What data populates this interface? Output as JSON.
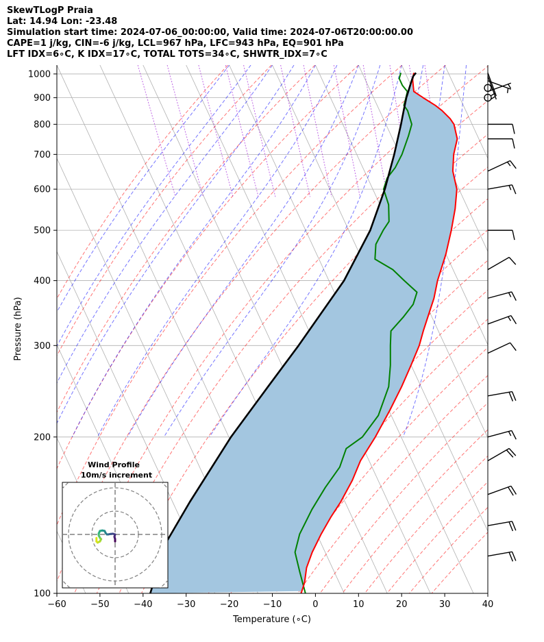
{
  "title_lines": [
    "SkewTLogP Praia",
    "Lat: 14.94   Lon: -23.48",
    "Simulation start time: 2024-07-06_00:00:00, Valid time: 2024-07-06T20:00:00.00",
    "CAPE=1 j/kg, CIN=-6 j/kg, LCL=967 hPa, LFC=943 hPa, EQ=901 hPa",
    "LFT IDX=6∘C, K IDX=17∘C, TOTAL TOTS=34∘C, SHWTR_IDX=7∘C"
  ],
  "chart_data": {
    "type": "skewt",
    "xlabel": "Temperature (∘C)",
    "ylabel": "Pressure (hPa)",
    "xlim": [
      -60,
      40
    ],
    "ylim": [
      1040,
      100
    ],
    "y_scale": "log",
    "x_ticks": [
      -60,
      -50,
      -40,
      -30,
      -20,
      -10,
      0,
      10,
      20,
      30,
      40
    ],
    "y_ticks": [
      1000,
      900,
      800,
      700,
      600,
      500,
      400,
      300,
      200,
      100
    ],
    "grid": true,
    "temperature": {
      "color": "#ff0000",
      "points": [
        [
          1005,
          22
        ],
        [
          975,
          21
        ],
        [
          950,
          20.5
        ],
        [
          925,
          20
        ],
        [
          900,
          21.5
        ],
        [
          870,
          23.5
        ],
        [
          850,
          24.5
        ],
        [
          820,
          25.5
        ],
        [
          800,
          25.8
        ],
        [
          750,
          25
        ],
        [
          700,
          22.5
        ],
        [
          650,
          20.5
        ],
        [
          600,
          19.5
        ],
        [
          550,
          17
        ],
        [
          500,
          13.8
        ],
        [
          450,
          10
        ],
        [
          400,
          5.2
        ],
        [
          370,
          2.5
        ],
        [
          350,
          0.2
        ],
        [
          320,
          -3.5
        ],
        [
          300,
          -6
        ],
        [
          275,
          -10
        ],
        [
          250,
          -14.5
        ],
        [
          225,
          -19.8
        ],
        [
          200,
          -26
        ],
        [
          180,
          -32
        ],
        [
          165,
          -36
        ],
        [
          150,
          -41
        ],
        [
          140,
          -45
        ],
        [
          130,
          -49
        ],
        [
          120,
          -53
        ],
        [
          112,
          -56
        ],
        [
          105,
          -58
        ],
        [
          100,
          -60
        ]
      ]
    },
    "dewpoint": {
      "color": "#008000",
      "points": [
        [
          1005,
          19
        ],
        [
          980,
          18
        ],
        [
          950,
          18
        ],
        [
          925,
          18.5
        ],
        [
          900,
          17.5
        ],
        [
          870,
          16.2
        ],
        [
          850,
          16.5
        ],
        [
          800,
          16
        ],
        [
          760,
          14
        ],
        [
          700,
          10.5
        ],
        [
          660,
          7.5
        ],
        [
          630,
          4.5
        ],
        [
          600,
          2.5
        ],
        [
          560,
          2
        ],
        [
          520,
          0.3
        ],
        [
          500,
          -2
        ],
        [
          470,
          -5.2
        ],
        [
          440,
          -7
        ],
        [
          420,
          -4
        ],
        [
          400,
          -2.5
        ],
        [
          380,
          -0.8
        ],
        [
          360,
          -3
        ],
        [
          340,
          -6.7
        ],
        [
          320,
          -11
        ],
        [
          300,
          -12.7
        ],
        [
          275,
          -14.8
        ],
        [
          250,
          -17.5
        ],
        [
          220,
          -23
        ],
        [
          200,
          -29
        ],
        [
          190,
          -34
        ],
        [
          175,
          -37.5
        ],
        [
          160,
          -43
        ],
        [
          145,
          -48.5
        ],
        [
          130,
          -54
        ],
        [
          120,
          -57
        ],
        [
          110,
          -58
        ],
        [
          100,
          -59
        ]
      ]
    },
    "parcel_profile": {
      "color": "#000000",
      "points": [
        [
          1005,
          22.5
        ],
        [
          990,
          21.5
        ],
        [
          967,
          20.5
        ],
        [
          900,
          17.6
        ],
        [
          850,
          15.6
        ],
        [
          800,
          13.5
        ],
        [
          700,
          8.7
        ],
        [
          600,
          2.8
        ],
        [
          500,
          -5
        ],
        [
          400,
          -16.5
        ],
        [
          300,
          -34
        ],
        [
          250,
          -45.5
        ],
        [
          200,
          -59.5
        ],
        [
          150,
          -76
        ],
        [
          125,
          -86
        ],
        [
          100,
          -95
        ]
      ]
    },
    "cape_cin_shading": {
      "color": "#a3c6e0"
    },
    "dry_adiabats_theta_k": [
      250,
      260,
      270,
      280,
      290,
      300,
      310,
      320,
      330,
      340,
      350,
      360,
      370,
      380,
      390,
      400,
      410,
      420,
      430,
      440,
      450,
      460,
      470
    ],
    "moist_adiabats_start_c": [
      -20,
      -15,
      -10,
      -5,
      0,
      5,
      10,
      15,
      20,
      25,
      30,
      35
    ],
    "mixing_ratio_gkg": [
      0.1,
      0.2,
      0.4,
      0.7,
      1,
      2,
      3,
      5,
      8,
      12,
      16,
      20
    ],
    "wind_barbs": [
      {
        "p": 1005,
        "dir": 160,
        "spd": 3
      },
      {
        "p": 990,
        "dir": 160,
        "spd": 4
      },
      {
        "p": 970,
        "dir": 110,
        "spd": 5
      },
      {
        "p": 940,
        "dir": 0,
        "spd": 0
      },
      {
        "p": 925,
        "dir": 70,
        "spd": 5
      },
      {
        "p": 900,
        "dir": 0,
        "spd": 0
      },
      {
        "p": 800,
        "dir": 90,
        "spd": 8
      },
      {
        "p": 750,
        "dir": 90,
        "spd": 12
      },
      {
        "p": 650,
        "dir": 65,
        "spd": 15
      },
      {
        "p": 600,
        "dir": 80,
        "spd": 15
      },
      {
        "p": 500,
        "dir": 90,
        "spd": 12
      },
      {
        "p": 420,
        "dir": 60,
        "spd": 10
      },
      {
        "p": 370,
        "dir": 75,
        "spd": 15
      },
      {
        "p": 330,
        "dir": 70,
        "spd": 15
      },
      {
        "p": 290,
        "dir": 65,
        "spd": 12
      },
      {
        "p": 240,
        "dir": 80,
        "spd": 20
      },
      {
        "p": 200,
        "dir": 75,
        "spd": 15
      },
      {
        "p": 180,
        "dir": 60,
        "spd": 20
      },
      {
        "p": 155,
        "dir": 70,
        "spd": 20
      },
      {
        "p": 135,
        "dir": 80,
        "spd": 20
      },
      {
        "p": 118,
        "dir": 80,
        "spd": 20
      }
    ],
    "hodograph": {
      "title": "Wind Profile",
      "subtitle": "10m/s increment",
      "rings_ms": [
        10,
        20,
        30
      ],
      "xlim_ms": [
        -12,
        12
      ],
      "ylim_ms": [
        -12,
        12
      ],
      "colormap": "viridis",
      "points": [
        [
          0,
          -3
        ],
        [
          0,
          -2
        ],
        [
          -0.3,
          -1
        ],
        [
          0,
          0
        ],
        [
          -1,
          0.3
        ],
        [
          -2,
          0.2
        ],
        [
          -3,
          0
        ],
        [
          -3.5,
          0
        ],
        [
          -4,
          0.5
        ],
        [
          -4.5,
          1.5
        ],
        [
          -5.5,
          1.7
        ],
        [
          -6.5,
          1.5
        ],
        [
          -7,
          0.5
        ],
        [
          -7,
          -0.5
        ],
        [
          -6.5,
          -1.5
        ],
        [
          -6,
          -2
        ],
        [
          -6.5,
          -3
        ],
        [
          -7.5,
          -3.5
        ],
        [
          -8,
          -3
        ],
        [
          -8,
          -1.5
        ]
      ]
    }
  }
}
